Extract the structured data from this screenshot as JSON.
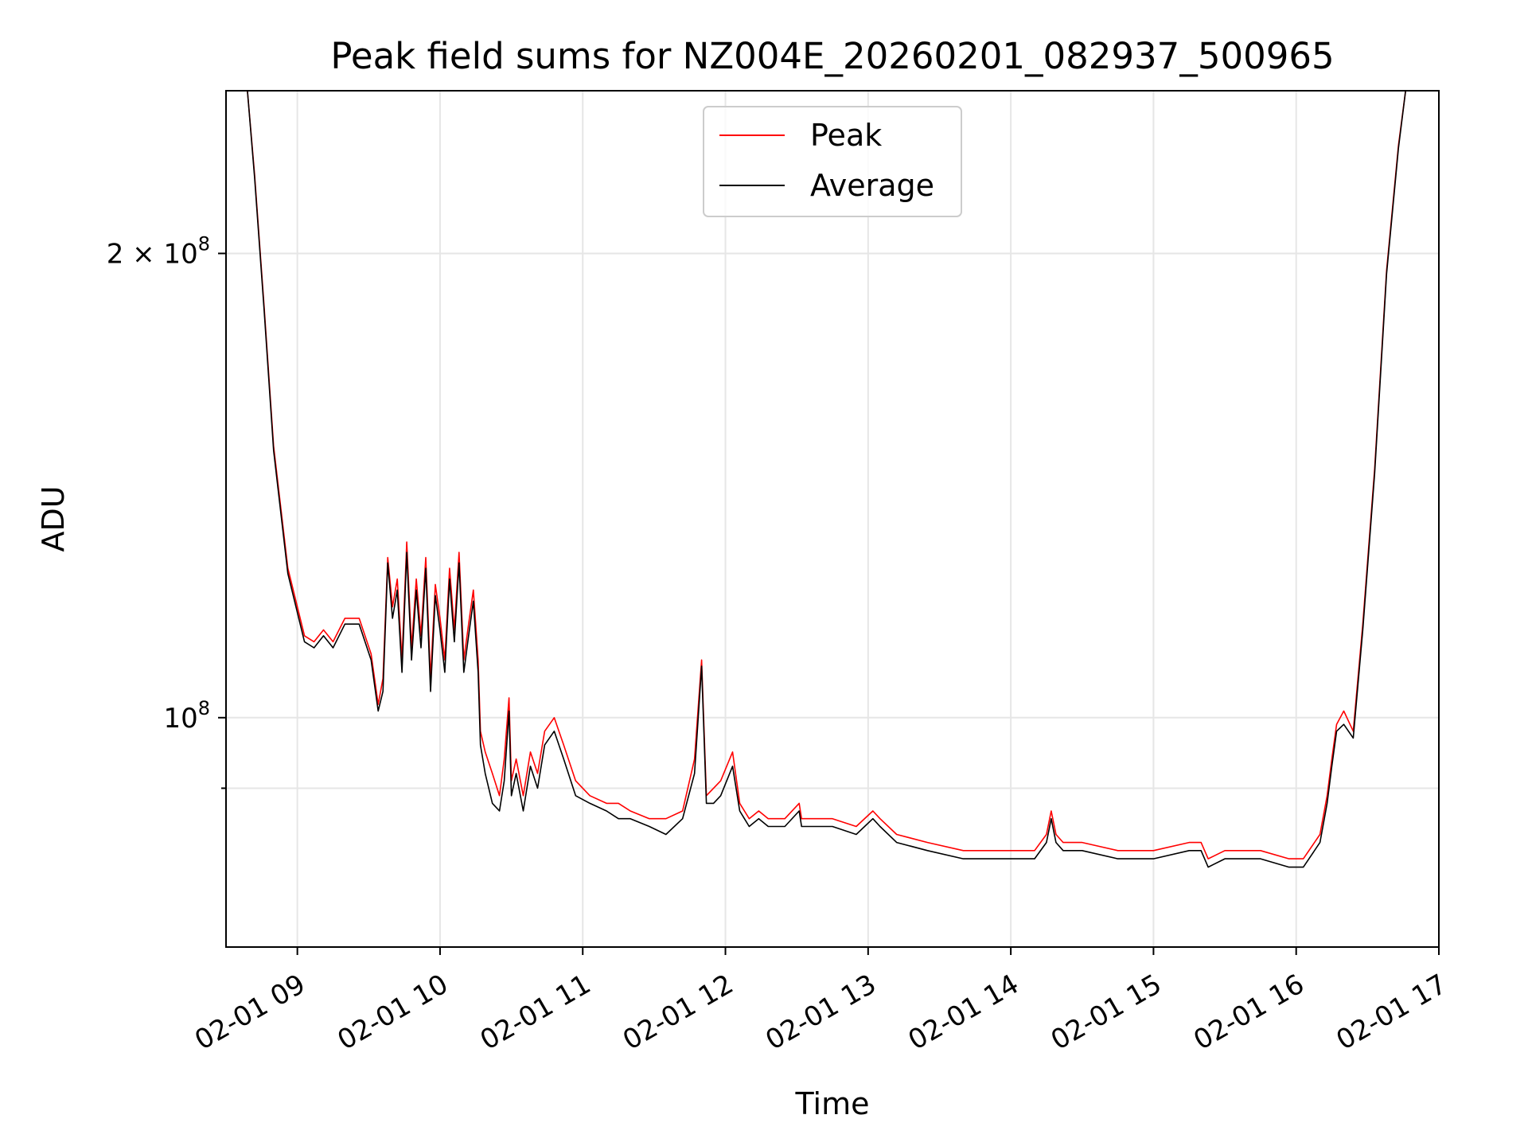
{
  "chart_data": {
    "type": "line",
    "title": "Peak field sums for NZ004E_20260201_082937_500965",
    "xlabel": "Time",
    "ylabel": "ADU",
    "yscale": "log",
    "grid": true,
    "legend_position": "top-center",
    "xlim": [
      "2026-02-01 08:30",
      "2026-02-01 17:00"
    ],
    "ylim": [
      71000000,
      255000000
    ],
    "x_ticks": [
      {
        "x": "2026-02-01 09:00",
        "label": "02-01 09"
      },
      {
        "x": "2026-02-01 10:00",
        "label": "02-01 10"
      },
      {
        "x": "2026-02-01 11:00",
        "label": "02-01 11"
      },
      {
        "x": "2026-02-01 12:00",
        "label": "02-01 12"
      },
      {
        "x": "2026-02-01 13:00",
        "label": "02-01 13"
      },
      {
        "x": "2026-02-01 14:00",
        "label": "02-01 14"
      },
      {
        "x": "2026-02-01 15:00",
        "label": "02-01 15"
      },
      {
        "x": "2026-02-01 16:00",
        "label": "02-01 16"
      },
      {
        "x": "2026-02-01 17:00",
        "label": "02-01 17"
      }
    ],
    "y_ticks": [
      {
        "y": 200000000,
        "base": "2 × 10",
        "exp": "8"
      },
      {
        "y": 100000000,
        "base": "10",
        "exp": "8"
      }
    ],
    "y_minor_ticks": [
      90000000
    ],
    "series": [
      {
        "name": "Peak",
        "color": "#ff0000",
        "x": [
          "2026-02-01 08:30",
          "2026-02-01 08:39",
          "2026-02-01 08:42",
          "2026-02-01 08:46",
          "2026-02-01 08:50",
          "2026-02-01 08:56",
          "2026-02-01 09:03",
          "2026-02-01 09:07",
          "2026-02-01 09:11",
          "2026-02-01 09:15",
          "2026-02-01 09:20",
          "2026-02-01 09:26",
          "2026-02-01 09:31",
          "2026-02-01 09:34",
          "2026-02-01 09:36",
          "2026-02-01 09:38",
          "2026-02-01 09:40",
          "2026-02-01 09:42",
          "2026-02-01 09:44",
          "2026-02-01 09:46",
          "2026-02-01 09:48",
          "2026-02-01 09:50",
          "2026-02-01 09:52",
          "2026-02-01 09:54",
          "2026-02-01 09:56",
          "2026-02-01 09:58",
          "2026-02-01 10:00",
          "2026-02-01 10:02",
          "2026-02-01 10:04",
          "2026-02-01 10:06",
          "2026-02-01 10:08",
          "2026-02-01 10:10",
          "2026-02-01 10:12",
          "2026-02-01 10:14",
          "2026-02-01 10:16",
          "2026-02-01 10:17",
          "2026-02-01 10:19",
          "2026-02-01 10:22",
          "2026-02-01 10:25",
          "2026-02-01 10:27",
          "2026-02-01 10:29",
          "2026-02-01 10:30",
          "2026-02-01 10:32",
          "2026-02-01 10:35",
          "2026-02-01 10:38",
          "2026-02-01 10:41",
          "2026-02-01 10:44",
          "2026-02-01 10:48",
          "2026-02-01 10:52",
          "2026-02-01 10:57",
          "2026-02-01 11:03",
          "2026-02-01 11:10",
          "2026-02-01 11:15",
          "2026-02-01 11:20",
          "2026-02-01 11:28",
          "2026-02-01 11:35",
          "2026-02-01 11:42",
          "2026-02-01 11:47",
          "2026-02-01 11:50",
          "2026-02-01 11:52",
          "2026-02-01 11:55",
          "2026-02-01 11:58",
          "2026-02-01 12:03",
          "2026-02-01 12:06",
          "2026-02-01 12:08",
          "2026-02-01 12:10",
          "2026-02-01 12:14",
          "2026-02-01 12:18",
          "2026-02-01 12:25",
          "2026-02-01 12:31",
          "2026-02-01 12:32",
          "2026-02-01 12:34",
          "2026-02-01 12:45",
          "2026-02-01 12:55",
          "2026-02-01 13:02",
          "2026-02-01 13:05",
          "2026-02-01 13:12",
          "2026-02-01 13:25",
          "2026-02-01 13:40",
          "2026-02-01 13:55",
          "2026-02-01 14:10",
          "2026-02-01 14:15",
          "2026-02-01 14:17",
          "2026-02-01 14:19",
          "2026-02-01 14:22",
          "2026-02-01 14:30",
          "2026-02-01 14:45",
          "2026-02-01 15:00",
          "2026-02-01 15:15",
          "2026-02-01 15:20",
          "2026-02-01 15:23",
          "2026-02-01 15:30",
          "2026-02-01 15:45",
          "2026-02-01 15:57",
          "2026-02-01 16:03",
          "2026-02-01 16:10",
          "2026-02-01 16:13",
          "2026-02-01 16:15",
          "2026-02-01 16:17",
          "2026-02-01 16:20",
          "2026-02-01 16:24",
          "2026-02-01 16:28",
          "2026-02-01 16:33",
          "2026-02-01 16:38",
          "2026-02-01 16:43",
          "2026-02-01 16:46"
        ],
        "values": [
          255000000,
          255000000,
          225000000,
          185000000,
          150000000,
          125000000,
          113000000,
          112000000,
          114000000,
          112000000,
          116000000,
          116000000,
          110000000,
          102000000,
          106000000,
          127000000,
          118000000,
          123000000,
          109000000,
          130000000,
          111000000,
          123000000,
          113000000,
          127000000,
          106000000,
          122000000,
          116000000,
          109000000,
          125000000,
          114000000,
          128000000,
          109000000,
          115000000,
          121000000,
          109000000,
          98000000,
          95000000,
          92000000,
          89000000,
          94000000,
          103000000,
          91000000,
          94000000,
          89000000,
          95000000,
          92000000,
          98000000,
          100000000,
          96000000,
          91000000,
          89000000,
          88000000,
          88000000,
          87000000,
          86000000,
          86000000,
          87000000,
          94000000,
          109000000,
          89000000,
          90000000,
          91000000,
          95000000,
          88000000,
          87000000,
          86000000,
          87000000,
          86000000,
          86000000,
          88000000,
          86000000,
          86000000,
          86000000,
          85000000,
          87000000,
          86000000,
          84000000,
          83000000,
          82000000,
          82000000,
          82000000,
          84000000,
          87000000,
          84000000,
          83000000,
          83000000,
          82000000,
          82000000,
          83000000,
          83000000,
          81000000,
          82000000,
          82000000,
          81000000,
          81000000,
          84000000,
          89000000,
          94000000,
          99000000,
          101000000,
          98000000,
          115000000,
          145000000,
          195000000,
          235000000,
          255000000
        ]
      },
      {
        "name": "Average",
        "color": "#000000",
        "x": [
          "2026-02-01 08:30",
          "2026-02-01 08:39",
          "2026-02-01 08:42",
          "2026-02-01 08:46",
          "2026-02-01 08:50",
          "2026-02-01 08:56",
          "2026-02-01 09:03",
          "2026-02-01 09:07",
          "2026-02-01 09:11",
          "2026-02-01 09:15",
          "2026-02-01 09:20",
          "2026-02-01 09:26",
          "2026-02-01 09:31",
          "2026-02-01 09:34",
          "2026-02-01 09:36",
          "2026-02-01 09:38",
          "2026-02-01 09:40",
          "2026-02-01 09:42",
          "2026-02-01 09:44",
          "2026-02-01 09:46",
          "2026-02-01 09:48",
          "2026-02-01 09:50",
          "2026-02-01 09:52",
          "2026-02-01 09:54",
          "2026-02-01 09:56",
          "2026-02-01 09:58",
          "2026-02-01 10:00",
          "2026-02-01 10:02",
          "2026-02-01 10:04",
          "2026-02-01 10:06",
          "2026-02-01 10:08",
          "2026-02-01 10:10",
          "2026-02-01 10:12",
          "2026-02-01 10:14",
          "2026-02-01 10:16",
          "2026-02-01 10:17",
          "2026-02-01 10:19",
          "2026-02-01 10:22",
          "2026-02-01 10:25",
          "2026-02-01 10:27",
          "2026-02-01 10:29",
          "2026-02-01 10:30",
          "2026-02-01 10:32",
          "2026-02-01 10:35",
          "2026-02-01 10:38",
          "2026-02-01 10:41",
          "2026-02-01 10:44",
          "2026-02-01 10:48",
          "2026-02-01 10:52",
          "2026-02-01 10:57",
          "2026-02-01 11:03",
          "2026-02-01 11:10",
          "2026-02-01 11:15",
          "2026-02-01 11:20",
          "2026-02-01 11:28",
          "2026-02-01 11:35",
          "2026-02-01 11:42",
          "2026-02-01 11:47",
          "2026-02-01 11:50",
          "2026-02-01 11:52",
          "2026-02-01 11:55",
          "2026-02-01 11:58",
          "2026-02-01 12:03",
          "2026-02-01 12:06",
          "2026-02-01 12:08",
          "2026-02-01 12:10",
          "2026-02-01 12:14",
          "2026-02-01 12:18",
          "2026-02-01 12:25",
          "2026-02-01 12:31",
          "2026-02-01 12:32",
          "2026-02-01 12:34",
          "2026-02-01 12:45",
          "2026-02-01 12:55",
          "2026-02-01 13:02",
          "2026-02-01 13:05",
          "2026-02-01 13:12",
          "2026-02-01 13:25",
          "2026-02-01 13:40",
          "2026-02-01 13:55",
          "2026-02-01 14:10",
          "2026-02-01 14:15",
          "2026-02-01 14:17",
          "2026-02-01 14:19",
          "2026-02-01 14:22",
          "2026-02-01 14:30",
          "2026-02-01 14:45",
          "2026-02-01 15:00",
          "2026-02-01 15:15",
          "2026-02-01 15:20",
          "2026-02-01 15:23",
          "2026-02-01 15:30",
          "2026-02-01 15:45",
          "2026-02-01 15:57",
          "2026-02-01 16:03",
          "2026-02-01 16:10",
          "2026-02-01 16:13",
          "2026-02-01 16:15",
          "2026-02-01 16:17",
          "2026-02-01 16:20",
          "2026-02-01 16:24",
          "2026-02-01 16:28",
          "2026-02-01 16:33",
          "2026-02-01 16:38",
          "2026-02-01 16:43",
          "2026-02-01 16:46"
        ],
        "values": [
          255000000,
          255000000,
          224000000,
          184000000,
          149000000,
          124000000,
          112000000,
          111000000,
          113000000,
          111000000,
          115000000,
          115000000,
          109000000,
          101000000,
          104000000,
          126000000,
          116000000,
          121000000,
          107000000,
          128000000,
          109000000,
          121000000,
          111000000,
          125000000,
          104000000,
          120000000,
          114000000,
          107000000,
          123000000,
          112000000,
          126000000,
          107000000,
          113000000,
          119000000,
          107000000,
          96000000,
          92000000,
          88000000,
          87000000,
          91000000,
          101000000,
          89000000,
          92000000,
          87000000,
          93000000,
          90000000,
          96000000,
          98000000,
          94000000,
          89000000,
          88000000,
          87000000,
          86000000,
          86000000,
          85000000,
          84000000,
          86000000,
          92000000,
          108000000,
          88000000,
          88000000,
          89000000,
          93000000,
          87000000,
          86000000,
          85000000,
          86000000,
          85000000,
          85000000,
          87000000,
          85000000,
          85000000,
          85000000,
          84000000,
          86000000,
          85000000,
          83000000,
          82000000,
          81000000,
          81000000,
          81000000,
          83000000,
          86000000,
          83000000,
          82000000,
          82000000,
          81000000,
          81000000,
          82000000,
          82000000,
          80000000,
          81000000,
          81000000,
          80000000,
          80000000,
          83000000,
          88000000,
          93000000,
          98000000,
          99000000,
          97000000,
          114000000,
          144000000,
          194000000,
          234000000,
          255000000
        ]
      }
    ]
  }
}
